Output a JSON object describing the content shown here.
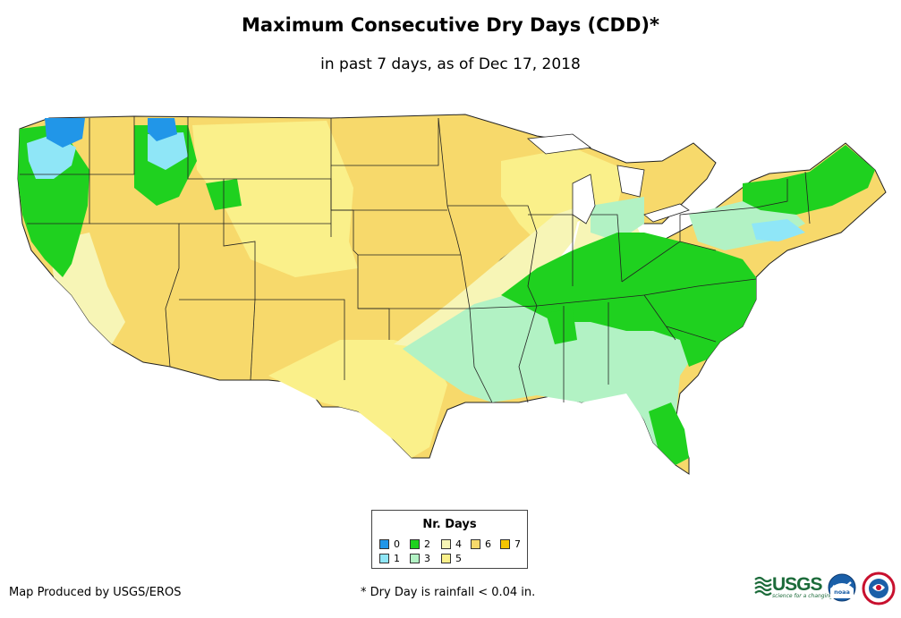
{
  "map": {
    "title": "Maximum Consecutive Dry Days (CDD)*",
    "subtitle": "in past 7 days, as of Dec 17, 2018",
    "region": "contiguous United States"
  },
  "legend": {
    "title": "Nr. Days",
    "items": [
      {
        "label": "0",
        "color": "#2196e8"
      },
      {
        "label": "1",
        "color": "#8fe6f7"
      },
      {
        "label": "2",
        "color": "#1fd11f"
      },
      {
        "label": "3",
        "color": "#b2f2c4"
      },
      {
        "label": "4",
        "color": "#f7f5b6"
      },
      {
        "label": "5",
        "color": "#faf08a"
      },
      {
        "label": "6",
        "color": "#f7d96b"
      },
      {
        "label": "7",
        "color": "#f5c400"
      }
    ]
  },
  "footer": {
    "credit": "Map Produced by USGS/EROS",
    "note": "* Dry Day is rainfall < 0.04 in."
  },
  "logos": {
    "usgs": "USGS",
    "usgs_tagline": "science for a changing world",
    "noaa": "noaa",
    "nws": "National Weather Service"
  }
}
